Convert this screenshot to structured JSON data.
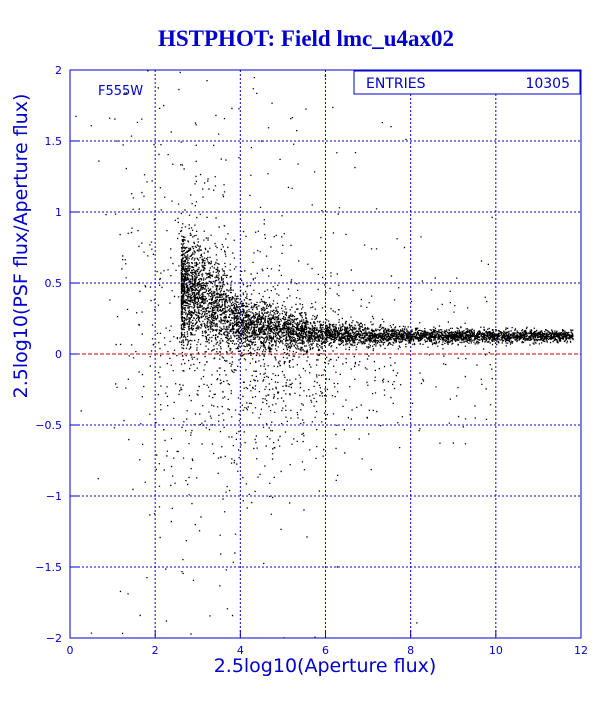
{
  "chart_data": {
    "type": "scatter",
    "title": "HSTPHOT: Field lmc_u4ax02",
    "xlabel": "2.5log10(Aperture flux)",
    "ylabel": "2.5log10(PSF flux/Aperture flux)",
    "xlim": [
      0,
      12
    ],
    "ylim": [
      -2,
      2
    ],
    "x_ticks": [
      "0",
      "2",
      "4",
      "6",
      "8",
      "10",
      "12"
    ],
    "y_ticks": [
      "-2",
      "-1.5",
      "-1",
      "-0.5",
      "0",
      "0.5",
      "1",
      "1.5",
      "2"
    ],
    "grid": true,
    "reference_line": {
      "y": 0,
      "style": "dashed",
      "color": "#cc0000"
    },
    "filter_label": "F555W",
    "stats": {
      "label": "ENTRIES",
      "value": "10305"
    },
    "series": [
      {
        "marker_color": "#000000",
        "approx_points": 10305,
        "locus": {
          "x_range": [
            2.5,
            11.8
          ],
          "y_center_at_x": [
            [
              3.0,
              0.45
            ],
            [
              4.0,
              0.2
            ],
            [
              6.0,
              0.14
            ],
            [
              8.0,
              0.13
            ],
            [
              11.8,
              0.13
            ]
          ],
          "y_spread_at_x": [
            [
              3.0,
              0.2
            ],
            [
              4.0,
              0.1
            ],
            [
              6.0,
              0.04
            ],
            [
              8.0,
              0.025
            ],
            [
              11.8,
              0.02
            ]
          ]
        },
        "scatter_cloud": {
          "x_center": 4.2,
          "x_range": [
            0.1,
            11.5
          ],
          "y_range": [
            -2,
            2
          ],
          "note_hidden": false
        }
      }
    ]
  },
  "colors": {
    "axis": "#0000cc",
    "grid": "#0000cc",
    "points": "#000000",
    "zero_line": "#cc0000"
  }
}
